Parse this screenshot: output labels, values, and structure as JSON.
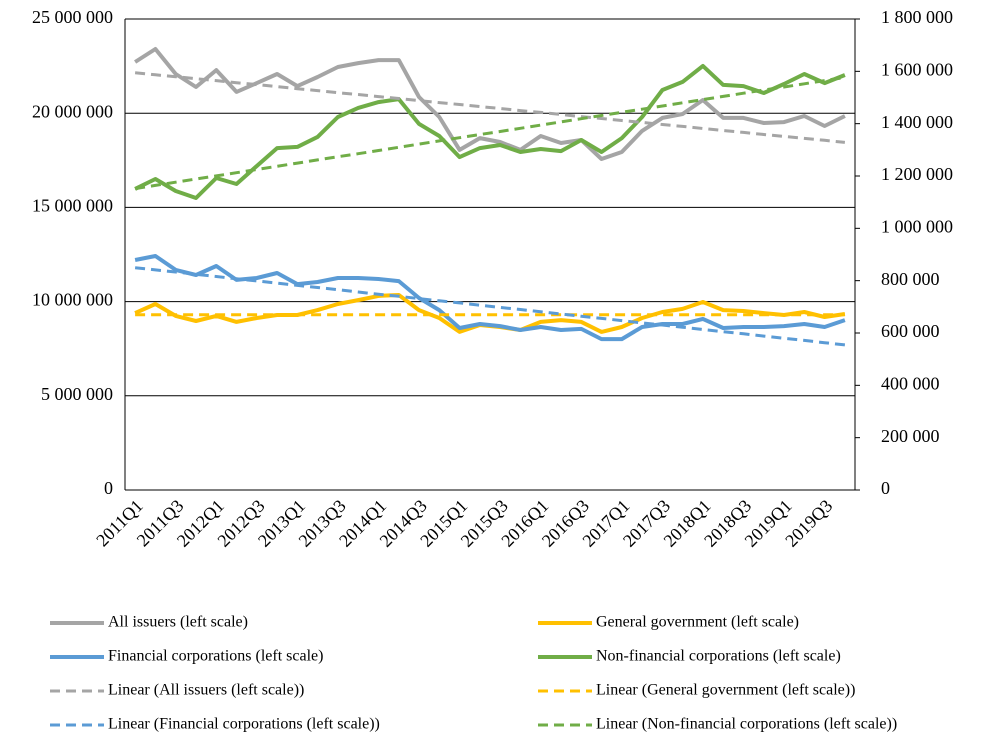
{
  "chart_data": {
    "type": "line",
    "categories": [
      "2011Q1",
      null,
      "2011Q3",
      null,
      "2012Q1",
      null,
      "2012Q3",
      null,
      "2013Q1",
      null,
      "2013Q3",
      null,
      "2014Q1",
      null,
      "2014Q3",
      null,
      "2015Q1",
      null,
      "2015Q3",
      null,
      "2016Q1",
      null,
      "2016Q3",
      null,
      "2017Q1",
      null,
      "2017Q3",
      null,
      "2018Q1",
      null,
      "2018Q3",
      null,
      "2019Q1",
      null,
      "2019Q3",
      null
    ],
    "ylim": [
      0,
      25000000
    ],
    "yticks": [
      0,
      {
        "value": 5000000,
        "label": "5 000 000"
      },
      {
        "value": 10000000,
        "label": "10 000 000"
      },
      {
        "value": 15000000,
        "label": "15 000 000"
      },
      {
        "value": 20000000,
        "label": "20 000 000"
      },
      {
        "value": 25000000,
        "label": "25 000 000"
      }
    ],
    "y2lim": [
      0,
      1800000
    ],
    "y2ticks": [
      0,
      {
        "value": 200000,
        "label": "200 000"
      },
      {
        "value": 400000,
        "label": "400 000"
      },
      {
        "value": 600000,
        "label": "600 000"
      },
      {
        "value": 800000,
        "label": "800 000"
      },
      {
        "value": 1000000,
        "label": "1 000 000"
      },
      {
        "value": 1200000,
        "label": "1 200 000"
      },
      {
        "value": 1400000,
        "label": "1 400 000"
      },
      {
        "value": 1600000,
        "label": "1 600 000"
      },
      {
        "value": 1800000,
        "label": "1 800 000"
      }
    ],
    "grid": true,
    "legend": "bottom",
    "series": [
      {
        "name": "All issuers (left scale)",
        "color": "#a5a5a5",
        "dashed": false,
        "values": [
          22720000,
          23410000,
          22080000,
          21390000,
          22290000,
          21130000,
          21600000,
          22080000,
          21440000,
          21920000,
          22450000,
          22660000,
          22820000,
          22820000,
          20860000,
          19800000,
          18050000,
          18680000,
          18470000,
          18050000,
          18790000,
          18420000,
          18580000,
          17570000,
          17940000,
          19060000,
          19750000,
          19960000,
          20700000,
          19750000,
          19750000,
          19480000,
          19530000,
          19850000,
          19320000,
          19850000
        ]
      },
      {
        "name": "General government (left scale)",
        "color": "#ffc000",
        "dashed": false,
        "values": [
          9390000,
          9870000,
          9240000,
          8970000,
          9240000,
          8920000,
          9130000,
          9290000,
          9290000,
          9550000,
          9870000,
          10080000,
          10300000,
          10350000,
          9550000,
          9130000,
          8390000,
          8760000,
          8650000,
          8490000,
          8920000,
          9020000,
          8920000,
          8390000,
          8650000,
          9130000,
          9450000,
          9610000,
          9980000,
          9550000,
          9500000,
          9390000,
          9290000,
          9450000,
          9180000,
          9340000
        ]
      },
      {
        "name": "Financial corporations (left scale)",
        "color": "#5b9bd5",
        "dashed": false,
        "values": [
          12210000,
          12420000,
          11680000,
          11410000,
          11890000,
          11150000,
          11250000,
          11520000,
          10930000,
          11040000,
          11250000,
          11250000,
          11200000,
          11090000,
          10190000,
          9550000,
          8600000,
          8810000,
          8700000,
          8490000,
          8650000,
          8490000,
          8550000,
          8010000,
          8010000,
          8650000,
          8810000,
          8810000,
          9080000,
          8600000,
          8650000,
          8650000,
          8700000,
          8810000,
          8650000,
          9020000
        ]
      },
      {
        "name": "Non-financial corporations (left scale)",
        "color": "#70ad47",
        "dashed": false,
        "values": [
          15980000,
          16510000,
          15870000,
          15500000,
          16560000,
          16240000,
          17200000,
          18150000,
          18210000,
          18740000,
          19800000,
          20280000,
          20590000,
          20750000,
          19430000,
          18790000,
          17670000,
          18150000,
          18310000,
          17940000,
          18100000,
          17990000,
          18580000,
          17940000,
          18680000,
          19800000,
          21230000,
          21660000,
          22510000,
          21500000,
          21440000,
          21070000,
          21550000,
          22080000,
          21600000,
          22030000
        ]
      },
      {
        "name": "Linear (All issuers (left scale))",
        "color": "#a5a5a5",
        "dashed": true,
        "values": [
          22150000,
          22040000,
          21940000,
          21830000,
          21730000,
          21620000,
          21520000,
          21410000,
          21300000,
          21200000,
          21090000,
          20990000,
          20880000,
          20780000,
          20670000,
          20560000,
          20460000,
          20350000,
          20250000,
          20140000,
          20040000,
          19930000,
          19820000,
          19720000,
          19610000,
          19510000,
          19400000,
          19300000,
          19190000,
          19080000,
          18980000,
          18870000,
          18770000,
          18660000,
          18560000,
          18450000
        ]
      },
      {
        "name": "Linear (General government (left scale))",
        "color": "#ffc000",
        "dashed": true,
        "values": [
          9300000,
          9300000,
          9300000,
          9300000,
          9300000,
          9300000,
          9300000,
          9300000,
          9300000,
          9300000,
          9300000,
          9300000,
          9300000,
          9300000,
          9300000,
          9300000,
          9300000,
          9300000,
          9300000,
          9300000,
          9300000,
          9300000,
          9300000,
          9300000,
          9300000,
          9300000,
          9300000,
          9300000,
          9300000,
          9300000,
          9300000,
          9300000,
          9300000,
          9300000,
          9300000,
          9300000
        ]
      },
      {
        "name": "Linear (Financial corporations (left scale))",
        "color": "#5b9bd5",
        "dashed": true,
        "values": [
          11800000,
          11680000,
          11570000,
          11450000,
          11330000,
          11210000,
          11100000,
          10980000,
          10860000,
          10750000,
          10630000,
          10510000,
          10390000,
          10280000,
          10160000,
          10040000,
          9930000,
          9810000,
          9690000,
          9580000,
          9460000,
          9340000,
          9220000,
          9110000,
          8990000,
          8870000,
          8760000,
          8640000,
          8520000,
          8400000,
          8290000,
          8170000,
          8050000,
          7940000,
          7820000,
          7700000
        ]
      },
      {
        "name": "Linear (Non-financial corporations (left scale))",
        "color": "#70ad47",
        "dashed": true,
        "values": [
          16000000,
          16170000,
          16340000,
          16510000,
          16670000,
          16840000,
          17010000,
          17180000,
          17350000,
          17520000,
          17690000,
          17850000,
          18020000,
          18190000,
          18360000,
          18530000,
          18700000,
          18870000,
          19030000,
          19200000,
          19370000,
          19540000,
          19710000,
          19880000,
          20050000,
          20210000,
          20380000,
          20550000,
          20720000,
          20890000,
          21060000,
          21230000,
          21390000,
          21560000,
          21730000,
          21900000
        ]
      }
    ]
  }
}
